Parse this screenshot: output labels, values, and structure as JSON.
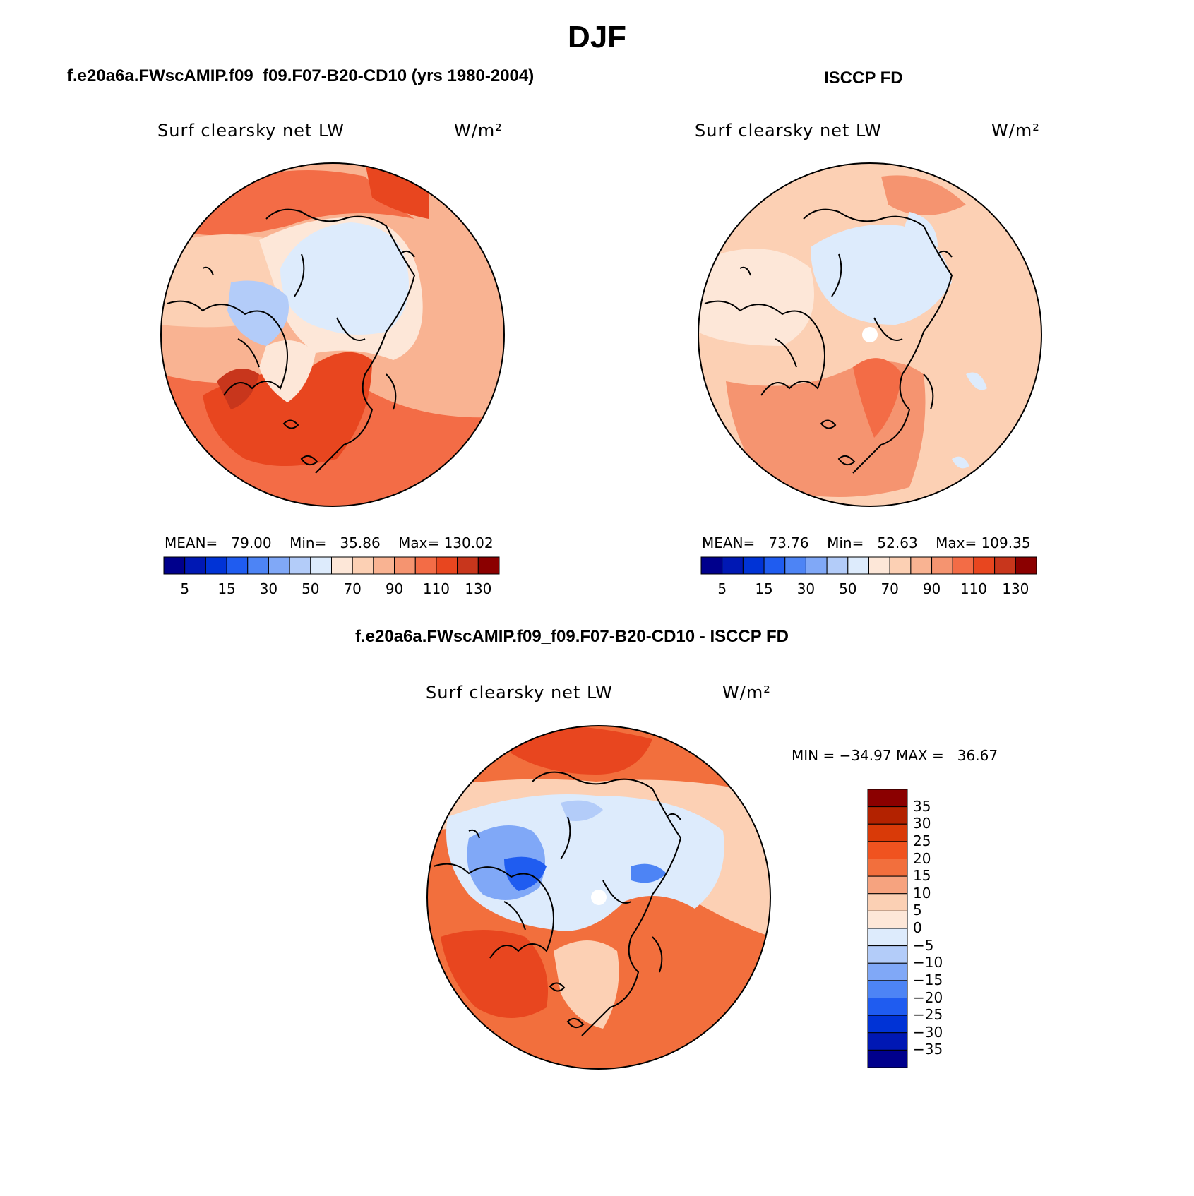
{
  "figure": {
    "title": "DJF"
  },
  "panels": [
    {
      "title": "f.e20a6a.FWscAMIP.f09_f09.F07-B20-CD10 (yrs 1980-2004)",
      "variable": "Surf clearsky net LW",
      "units": "W/m²",
      "stats": {
        "mean_label": "MEAN=",
        "mean": "79.00",
        "min_label": "Min=",
        "min": "35.86",
        "max_label": "Max=",
        "max": "130.02"
      }
    },
    {
      "title": "ISCCP FD",
      "variable": "Surf clearsky net LW",
      "units": "W/m²",
      "stats": {
        "mean_label": "MEAN=",
        "mean": "73.76",
        "min_label": "Min=",
        "min": "52.63",
        "max_label": "Max=",
        "max": "109.35"
      }
    },
    {
      "title": "f.e20a6a.FWscAMIP.f09_f09.F07-B20-CD10 - ISCCP FD",
      "variable": "Surf clearsky net LW",
      "units": "W/m²",
      "stats": {
        "text": "MIN = −34.97 MAX =   36.67"
      }
    }
  ],
  "colorbars": {
    "abs": {
      "colors": [
        "#00008c",
        "#0018b4",
        "#0033d6",
        "#1f5cf0",
        "#4d84f5",
        "#80a8f7",
        "#b3ccf9",
        "#ddebfc",
        "#fde7d8",
        "#fcd0b4",
        "#f9b392",
        "#f59470",
        "#f36c46",
        "#e8461f",
        "#c8361c",
        "#8b0000"
      ],
      "tick_labels": [
        "5",
        "15",
        "30",
        "50",
        "70",
        "90",
        "110",
        "130"
      ]
    },
    "diff": {
      "colors": [
        "#8b0000",
        "#b32200",
        "#d93a08",
        "#f0531f",
        "#f26f3d",
        "#f6a37f",
        "#fbd0b4",
        "#fde7d8",
        "#ddebfc",
        "#b3ccf9",
        "#80a8f7",
        "#4d84f5",
        "#1f5cf0",
        "#0033d6",
        "#0018b4",
        "#00008c"
      ],
      "tick_labels": [
        "35",
        "30",
        "25",
        "20",
        "15",
        "10",
        "5",
        "0",
        "−5",
        "−10",
        "−15",
        "−20",
        "−25",
        "−30",
        "−35"
      ]
    }
  },
  "colors": {
    "ocean_warm": "#f26b45",
    "ocean_strong": "#e8461f",
    "land_light": "#fcd0b4",
    "land_pale": "#fde7d8",
    "ice_blue": "#dce9fb",
    "blue_mid": "#80a8f7",
    "blue_deep": "#1f5cf0",
    "coast": "#000000"
  }
}
